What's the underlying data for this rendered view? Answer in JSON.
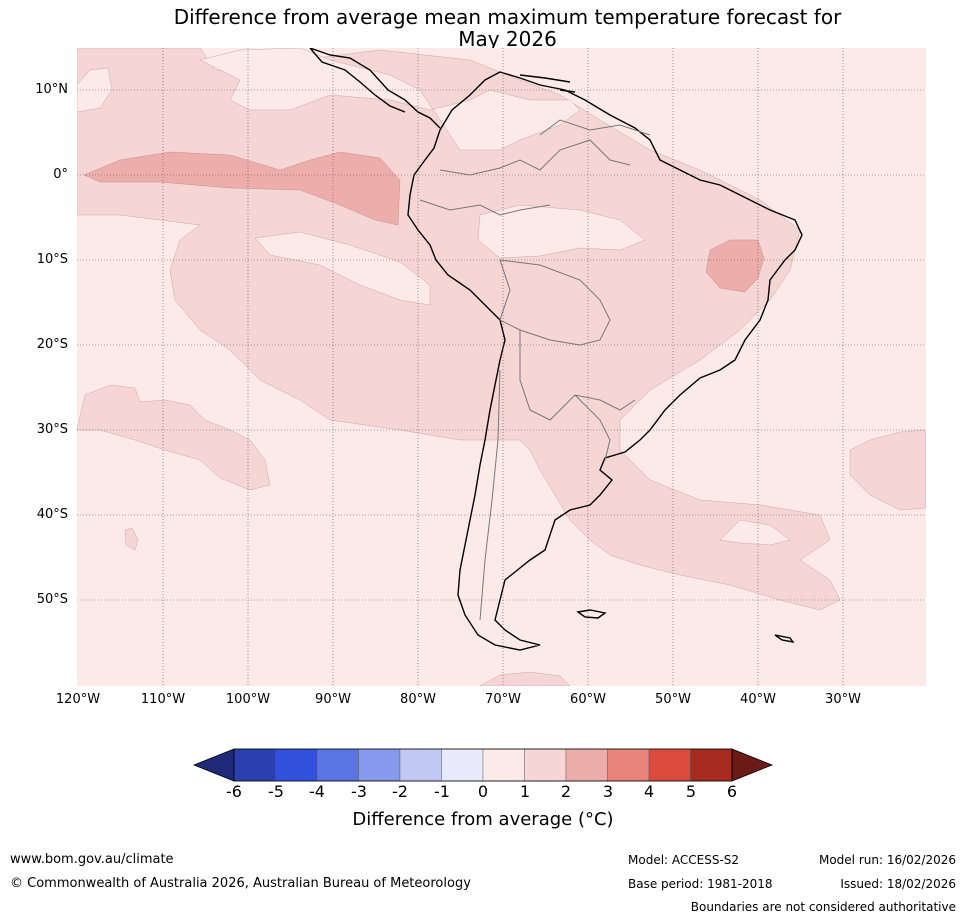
{
  "title": {
    "line1": "Difference from average mean maximum temperature forecast for",
    "line2": "May 2026"
  },
  "map": {
    "lat_labels": [
      "10°N",
      "0°",
      "10°S",
      "20°S",
      "30°S",
      "40°S",
      "50°S"
    ],
    "lon_labels": [
      "120°W",
      "110°W",
      "100°W",
      "90°W",
      "80°W",
      "70°W",
      "60°W",
      "50°W",
      "40°W",
      "30°W"
    ],
    "background_color": "#fbeae8"
  },
  "colorbar": {
    "ticks": [
      "-6",
      "-5",
      "-4",
      "-3",
      "-2",
      "-1",
      "0",
      "1",
      "2",
      "3",
      "4",
      "5",
      "6"
    ],
    "colors": [
      "#1f2a7a",
      "#2b3fae",
      "#3151de",
      "#5a74e4",
      "#8799ec",
      "#c1c8f3",
      "#e9ebfa",
      "#fbeae8",
      "#f5d6d4",
      "#edaeab",
      "#e8847c",
      "#da4a3d",
      "#a82b1f",
      "#6c1a17"
    ],
    "label": "Difference from average (°C)"
  },
  "footer": {
    "website": "www.bom.gov.au/climate",
    "copyright": "© Commonwealth of Australia 2026, Australian Bureau of Meteorology",
    "model": "Model: ACCESS-S2",
    "base_period": "Base period: 1981-2018",
    "model_run": "Model run: 16/02/2026",
    "issued": "Issued: 18/02/2026",
    "disclaimer": "Boundaries are not considered authoritative"
  }
}
